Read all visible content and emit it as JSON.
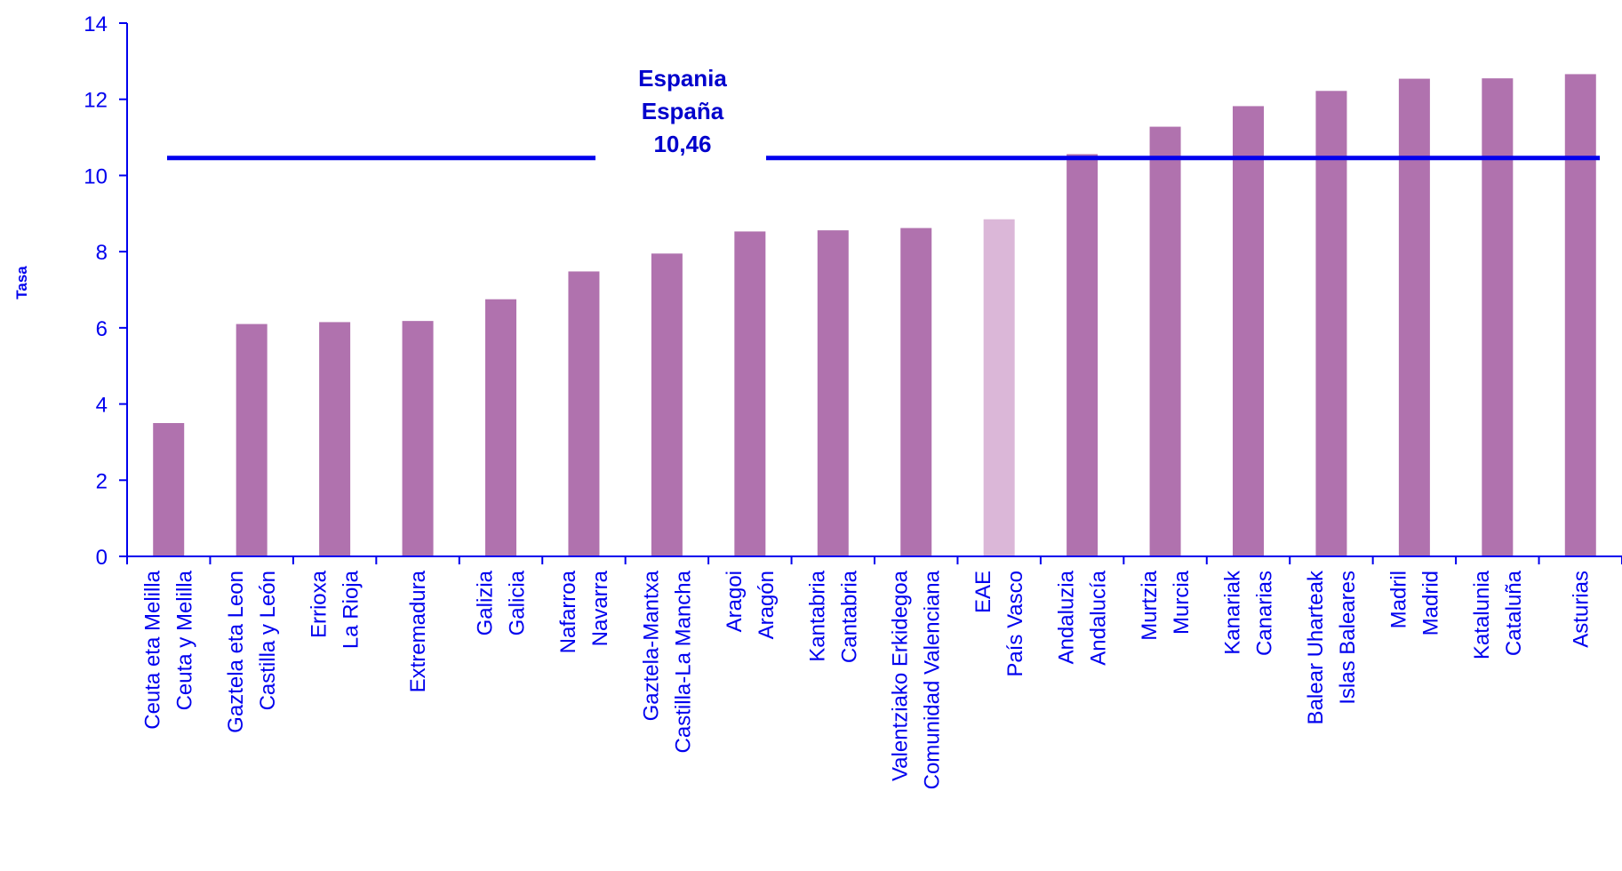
{
  "chart_data": {
    "type": "bar",
    "ylabel": "Tasa",
    "xlabel": "",
    "title": "",
    "ylim": [
      0,
      14
    ],
    "yticks": [
      0,
      2,
      4,
      6,
      8,
      10,
      12,
      14
    ],
    "categories": [
      [
        "Ceuta eta Melilla",
        "Ceuta y Melilla"
      ],
      [
        "Gaztela eta Leon",
        "Castilla y León"
      ],
      [
        "Errioxa",
        "La Rioja"
      ],
      [
        "Extremadura"
      ],
      [
        "Galizia",
        "Galicia"
      ],
      [
        "Nafarroa",
        "Navarra"
      ],
      [
        "Gaztela-Mantxa",
        "Castilla-La Mancha"
      ],
      [
        "Aragoi",
        "Aragón"
      ],
      [
        "Kantabria",
        "Cantabria"
      ],
      [
        "Valentziako Erkidegoa",
        "Comunidad Valenciana"
      ],
      [
        "EAE",
        "País Vasco"
      ],
      [
        "Andaluzia",
        "Andalucía"
      ],
      [
        "Murtzia",
        "Murcia"
      ],
      [
        "Kanariak",
        "Canarias"
      ],
      [
        "Balear Uharteak",
        "Islas Baleares"
      ],
      [
        "Madril",
        "Madrid"
      ],
      [
        "Katalunia",
        "Cataluña"
      ],
      [
        "Asturias"
      ]
    ],
    "values": [
      3.5,
      6.1,
      6.15,
      6.18,
      6.75,
      7.48,
      7.95,
      8.53,
      8.56,
      8.62,
      8.85,
      10.56,
      11.28,
      11.82,
      12.22,
      12.54,
      12.55,
      12.66
    ],
    "highlight_index": 10,
    "bar_color": "#b072ae",
    "highlight_color": "#dbb7d8",
    "axis_color": "#0000ee",
    "reference": {
      "value": 10.46,
      "label_lines": [
        "Espania",
        "España",
        "10,46"
      ],
      "color": "#0000ee"
    },
    "grid": false,
    "legend": "none"
  }
}
